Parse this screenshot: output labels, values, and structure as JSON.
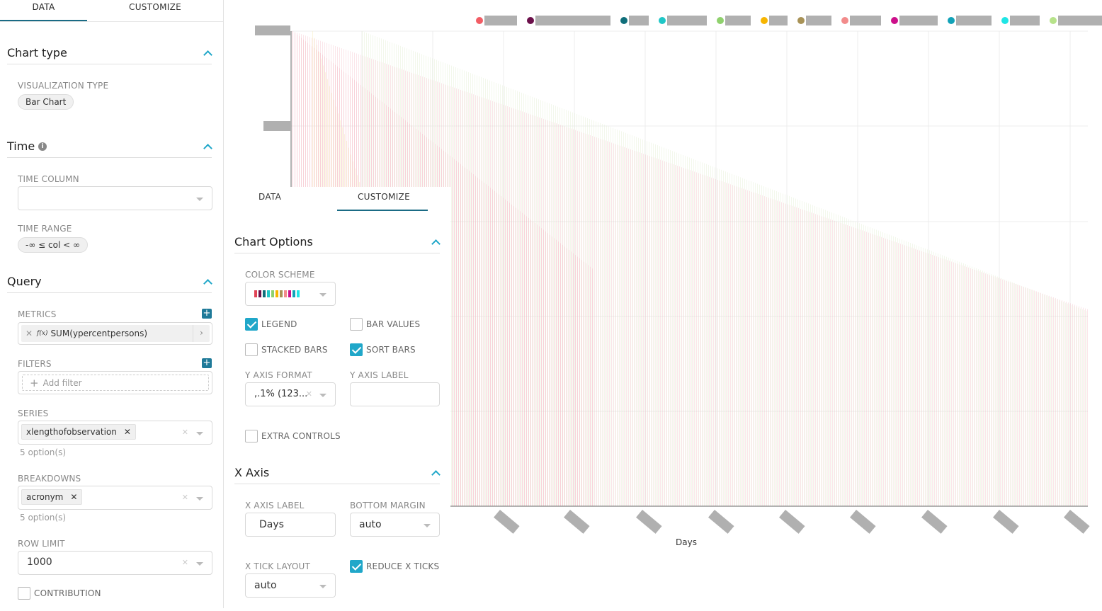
{
  "left_tabs": {
    "data": "DATA",
    "customize": "CUSTOMIZE"
  },
  "chart_type": {
    "title": "Chart type",
    "viz_label": "VISUALIZATION TYPE",
    "viz_value": "Bar Chart"
  },
  "time": {
    "title": "Time",
    "time_column_label": "TIME COLUMN",
    "time_column_value": "",
    "time_range_label": "TIME RANGE",
    "time_range_value": "-∞ ≤ col < ∞"
  },
  "query": {
    "title": "Query",
    "metrics_label": "METRICS",
    "metric_fx": "f(x)",
    "metric_value": "SUM(ypercentpersons)",
    "filters_label": "FILTERS",
    "filter_placeholder": "Add filter",
    "series_label": "SERIES",
    "series_tag": "xlengthofobservation",
    "series_hint": "5 option(s)",
    "breakdowns_label": "BREAKDOWNS",
    "breakdowns_tag": "acronym",
    "breakdowns_hint": "5 option(s)",
    "row_limit_label": "ROW LIMIT",
    "row_limit_value": "1000",
    "contribution_label": "CONTRIBUTION",
    "contribution_checked": false
  },
  "customize_tabs": {
    "data": "DATA",
    "customize": "CUSTOMIZE"
  },
  "chart_options": {
    "title": "Chart Options",
    "color_scheme_label": "COLOR SCHEME",
    "color_scheme_swatches": [
      "#e04355",
      "#6b0f4a",
      "#0f6e7a",
      "#1fc7c7",
      "#8fd16d",
      "#f7b500",
      "#a89256",
      "#f28b8b",
      "#cc0f8a",
      "#11a2b8",
      "#1fe5e5"
    ],
    "legend_label": "LEGEND",
    "legend_checked": true,
    "bar_values_label": "BAR VALUES",
    "bar_values_checked": false,
    "stacked_bars_label": "STACKED BARS",
    "stacked_bars_checked": false,
    "sort_bars_label": "SORT BARS",
    "sort_bars_checked": true,
    "y_axis_format_label": "Y AXIS FORMAT",
    "y_axis_format_value": ",.1% (123...",
    "y_axis_label_label": "Y AXIS LABEL",
    "y_axis_label_value": "",
    "extra_controls_label": "EXTRA CONTROLS",
    "extra_controls_checked": false
  },
  "x_axis": {
    "title": "X Axis",
    "x_axis_label_label": "X AXIS LABEL",
    "x_axis_label_value": "Days",
    "bottom_margin_label": "BOTTOM MARGIN",
    "bottom_margin_value": "auto",
    "x_tick_layout_label": "X TICK LAYOUT",
    "x_tick_layout_value": "auto",
    "reduce_x_ticks_label": "REDUCE X TICKS",
    "reduce_x_ticks_checked": true
  },
  "chart_data": {
    "type": "bar",
    "xlabel": "Days",
    "ylabel": "",
    "legend_placement": "top",
    "legend_colors": [
      "#f25c64",
      "#6b0f4a",
      "#0f6e7a",
      "#1fc7c7",
      "#8fd16d",
      "#f7b500",
      "#a89256",
      "#f28b8b",
      "#cc0f8a",
      "#11a2b8",
      "#1fe5e5",
      "#b7e38a"
    ],
    "legend_text_widths": [
      46,
      106,
      28,
      56,
      36,
      26,
      36,
      44,
      54,
      50,
      42,
      70
    ],
    "grid": true
  }
}
